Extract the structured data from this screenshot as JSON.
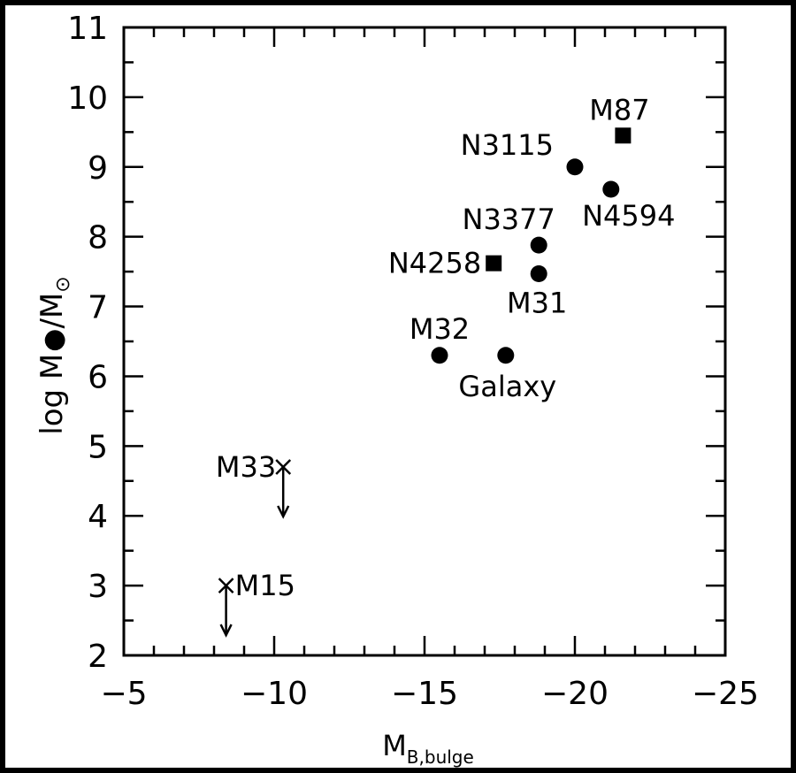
{
  "chart_data": {
    "type": "scatter",
    "xlabel": {
      "main": "M",
      "sub": "B,bulge"
    },
    "ylabel": {
      "pre": "log M",
      "mid": "/M"
    },
    "xlim": [
      -5,
      -25
    ],
    "ylim": [
      2,
      11
    ],
    "x_ticks": [
      -5,
      -10,
      -15,
      -20,
      -25
    ],
    "y_ticks": [
      2,
      3,
      4,
      5,
      6,
      7,
      8,
      9,
      10,
      11
    ],
    "x_ticks_labels": [
      "−5",
      "−10",
      "−15",
      "−20",
      "−25"
    ],
    "y_ticks_labels": [
      "2",
      "3",
      "4",
      "5",
      "6",
      "7",
      "8",
      "9",
      "10",
      "11"
    ],
    "points": [
      {
        "label": "M87",
        "x": -21.6,
        "y": 9.45,
        "marker": "square"
      },
      {
        "label": "N3115",
        "x": -20.0,
        "y": 9.0,
        "marker": "circle"
      },
      {
        "label": "N4594",
        "x": -21.2,
        "y": 8.68,
        "marker": "circle"
      },
      {
        "label": "N3377",
        "x": -18.8,
        "y": 7.88,
        "marker": "circle"
      },
      {
        "label": "N4258",
        "x": -17.3,
        "y": 7.62,
        "marker": "square"
      },
      {
        "label": "M31",
        "x": -18.8,
        "y": 7.47,
        "marker": "circle"
      },
      {
        "label": "M32",
        "x": -15.5,
        "y": 6.3,
        "marker": "circle"
      },
      {
        "label": "Galaxy",
        "x": -17.7,
        "y": 6.3,
        "marker": "circle"
      },
      {
        "label": "M33",
        "x": -10.3,
        "y": 4.7,
        "marker": "upper-limit"
      },
      {
        "label": "M15",
        "x": -8.4,
        "y": 3.0,
        "marker": "upper-limit"
      }
    ]
  }
}
